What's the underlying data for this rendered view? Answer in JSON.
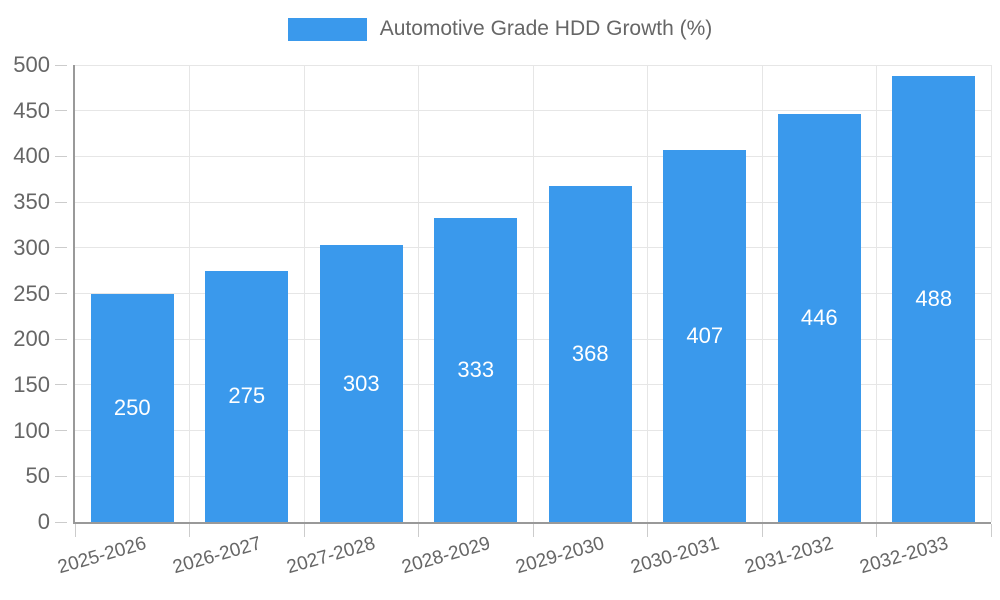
{
  "chart_data": {
    "type": "bar",
    "title": "",
    "legend_label": "Automotive Grade HDD Growth (%)",
    "legend_position": "top",
    "categories": [
      "2025-2026",
      "2026-2027",
      "2027-2028",
      "2028-2029",
      "2029-2030",
      "2030-2031",
      "2031-2032",
      "2032-2033"
    ],
    "series": [
      {
        "name": "Automotive Grade HDD Growth (%)",
        "values": [
          250,
          275,
          303,
          333,
          368,
          407,
          446,
          488
        ]
      }
    ],
    "value_labels": [
      "250",
      "275",
      "303",
      "333",
      "368",
      "407",
      "446",
      "488"
    ],
    "xlabel": "",
    "ylabel": "",
    "ylim": [
      0,
      500
    ],
    "yticks": [
      0,
      50,
      100,
      150,
      200,
      250,
      300,
      350,
      400,
      450,
      500
    ],
    "grid": true,
    "colors": {
      "bar": "#3a99ec",
      "grid_line": "#e6e6e6",
      "axis_line": "#999999",
      "tick": "#cccccc",
      "axis_text": "#666666",
      "value_text": "#ffffff"
    }
  }
}
